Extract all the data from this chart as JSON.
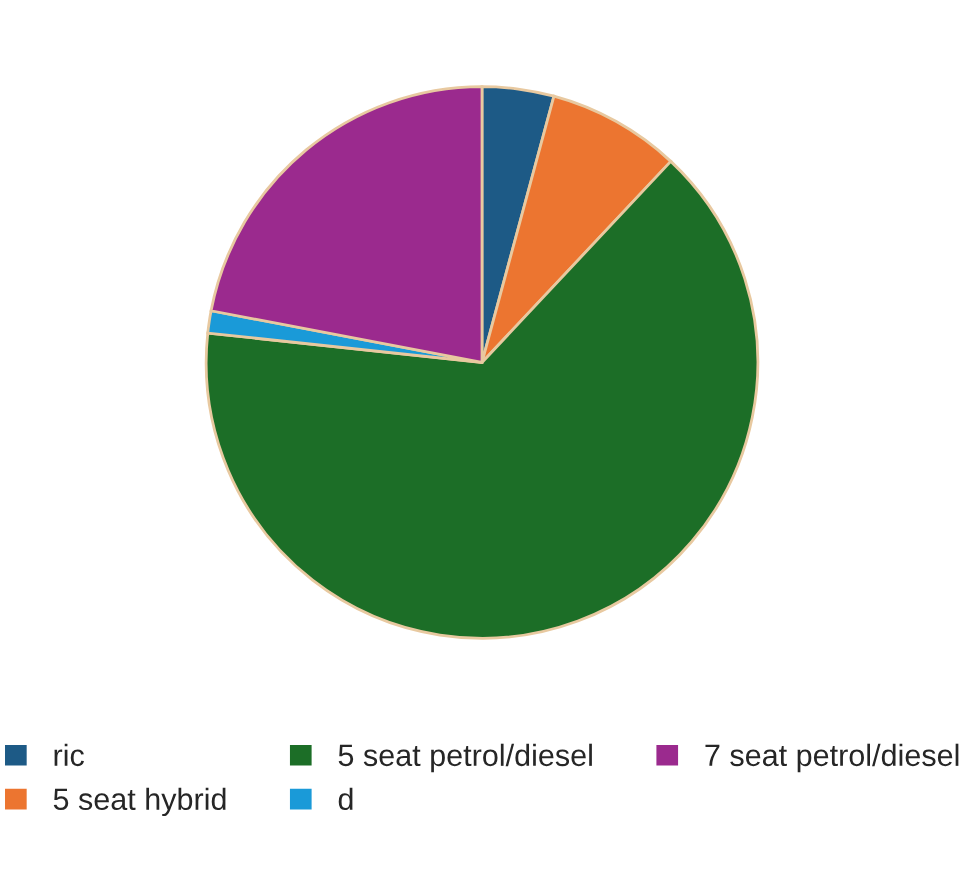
{
  "chart_data": {
    "type": "pie",
    "categories": [
      "ric",
      "5 seat hybrid",
      "5 seat petrol/diesel",
      "d",
      "7 seat petrol/diesel"
    ],
    "values": [
      4.2,
      7.8,
      64.7,
      1.3,
      22.0
    ],
    "colors": [
      "#1d5a86",
      "#ec7530",
      "#1c6e27",
      "#1a9ad8",
      "#9b2a8e"
    ],
    "legend": "bottom"
  }
}
